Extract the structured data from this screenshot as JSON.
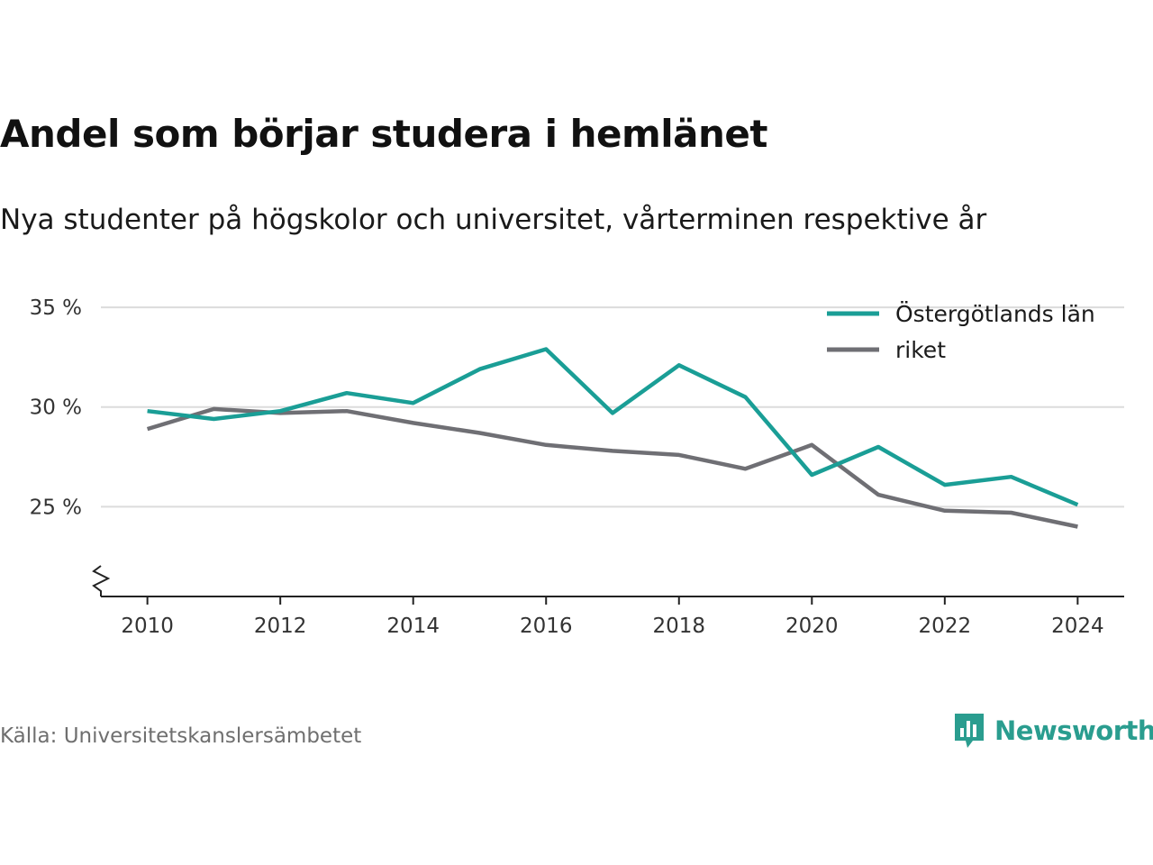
{
  "title": "Andel som börjar studera i hemlänet",
  "subtitle": "Nya studenter på högskolor och universitet, vårterminen respektive år",
  "source": "Källa: Universitetskanslersämbetet",
  "brand": {
    "name": "Newsworthy",
    "icon": "newsworthy-logo-icon",
    "color": "#2a9d8f"
  },
  "chart_data": {
    "type": "line",
    "x": [
      2010,
      2011,
      2012,
      2013,
      2014,
      2015,
      2016,
      2017,
      2018,
      2019,
      2020,
      2021,
      2022,
      2023,
      2024
    ],
    "series": [
      {
        "name": "Östergötlands län",
        "color": "#1a9e96",
        "values": [
          29.8,
          29.4,
          29.8,
          30.7,
          30.2,
          31.9,
          32.9,
          29.7,
          32.1,
          30.5,
          26.6,
          28.0,
          26.1,
          26.5,
          25.1
        ]
      },
      {
        "name": "riket",
        "color": "#6f6f74",
        "values": [
          28.9,
          29.9,
          29.7,
          29.8,
          29.2,
          28.7,
          28.1,
          27.8,
          27.6,
          26.9,
          28.1,
          25.6,
          24.8,
          24.7,
          24.0
        ]
      }
    ],
    "x_ticks": [
      "2010",
      "2012",
      "2014",
      "2016",
      "2018",
      "2020",
      "2022",
      "2024"
    ],
    "y_ticks": [
      {
        "value": 25,
        "label": "25 %"
      },
      {
        "value": 30,
        "label": "30 %"
      },
      {
        "value": 35,
        "label": "35 %"
      }
    ],
    "xlim": [
      2009.3,
      2024.7
    ],
    "ylim": [
      20.5,
      35.5
    ],
    "xlabel": "",
    "ylabel": "",
    "grid": true,
    "axis_break": true,
    "legend_position": "top-right"
  }
}
